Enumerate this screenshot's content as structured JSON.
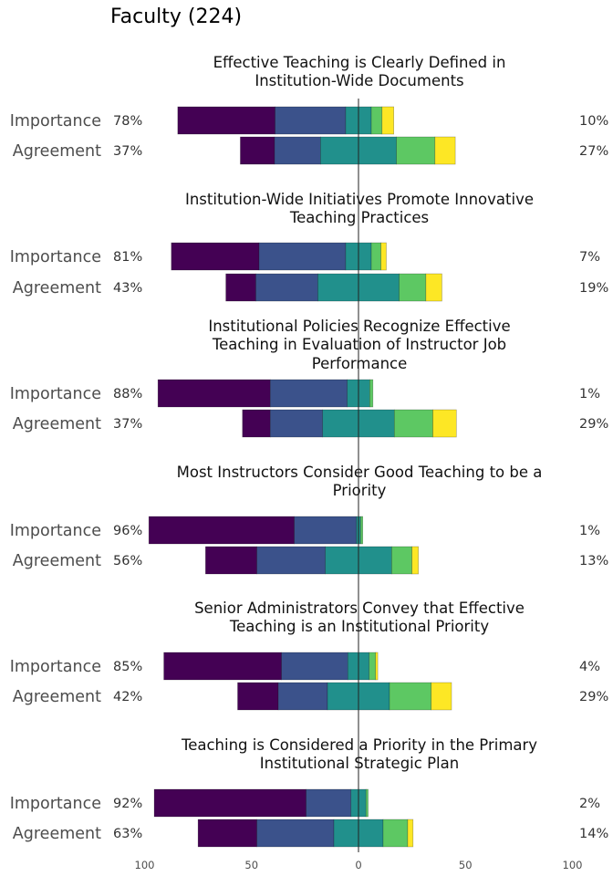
{
  "title": "Faculty (224)",
  "chart_data": {
    "type": "bar",
    "orientation": "diverging-horizontal-stacked",
    "colors": [
      "#440154",
      "#3b528b",
      "#21908c",
      "#5dc863",
      "#fde725"
    ],
    "xlim": [
      -100,
      100
    ],
    "x_ticks": [
      {
        "value": -100,
        "label": "100"
      },
      {
        "value": -50,
        "label": "50"
      },
      {
        "value": 0,
        "label": "0"
      },
      {
        "value": 50,
        "label": "50"
      },
      {
        "value": 100,
        "label": "100"
      }
    ],
    "rows": [
      "Importance",
      "Agreement"
    ],
    "panels": [
      {
        "title": [
          "Effective Teaching is Clearly Defined in",
          "Institution-Wide Documents"
        ],
        "rows": [
          {
            "label": "Importance",
            "left_pct": "78%",
            "right_pct": "10%",
            "values": [
              45.5,
              33,
              12,
              5,
              5.5
            ]
          },
          {
            "label": "Agreement",
            "left_pct": "37%",
            "right_pct": "27%",
            "values": [
              16,
              21.5,
              35.5,
              18,
              9.5
            ]
          }
        ]
      },
      {
        "title": [
          "Institution-Wide Initiatives Promote Innovative",
          "Teaching Practices"
        ],
        "rows": [
          {
            "label": "Importance",
            "left_pct": "81%",
            "right_pct": "7%",
            "values": [
              41,
              40.5,
              12,
              4.5,
              2.5
            ]
          },
          {
            "label": "Agreement",
            "left_pct": "43%",
            "right_pct": "19%",
            "values": [
              14,
              29,
              38,
              12.5,
              7.5
            ]
          }
        ]
      },
      {
        "title": [
          "Institutional Policies Recognize Effective",
          "Teaching in Evaluation of Instructor Job",
          "Performance"
        ],
        "rows": [
          {
            "label": "Importance",
            "left_pct": "88%",
            "right_pct": "1%",
            "values": [
              52.5,
              36,
              10.5,
              1.5,
              0
            ]
          },
          {
            "label": "Agreement",
            "left_pct": "37%",
            "right_pct": "29%",
            "values": [
              13,
              24.5,
              33.5,
              18,
              11
            ]
          }
        ]
      },
      {
        "title": [
          "Most Instructors Consider Good Teaching to be a",
          "Priority"
        ],
        "rows": [
          {
            "label": "Importance",
            "left_pct": "96%",
            "right_pct": "1%",
            "values": [
              68,
              29,
              2,
              1,
              0
            ]
          },
          {
            "label": "Agreement",
            "left_pct": "56%",
            "right_pct": "13%",
            "values": [
              24,
              32,
              31,
              9.5,
              3
            ]
          }
        ]
      },
      {
        "title": [
          "Senior Administrators Convey that Effective",
          "Teaching is an Institutional Priority"
        ],
        "rows": [
          {
            "label": "Importance",
            "left_pct": "85%",
            "right_pct": "4%",
            "values": [
              55,
              31,
              10,
              3,
              1
            ]
          },
          {
            "label": "Agreement",
            "left_pct": "42%",
            "right_pct": "29%",
            "values": [
              19,
              23,
              29,
              19.5,
              9.5
            ]
          }
        ]
      },
      {
        "title": [
          "Teaching is Considered a Priority in the Primary",
          "Institutional Strategic Plan"
        ],
        "rows": [
          {
            "label": "Importance",
            "left_pct": "92%",
            "right_pct": "2%",
            "values": [
              71,
              21,
              7,
              1,
              0
            ]
          },
          {
            "label": "Agreement",
            "left_pct": "63%",
            "right_pct": "14%",
            "values": [
              27.5,
              36,
              23,
              11.5,
              2.5
            ]
          }
        ]
      }
    ]
  }
}
